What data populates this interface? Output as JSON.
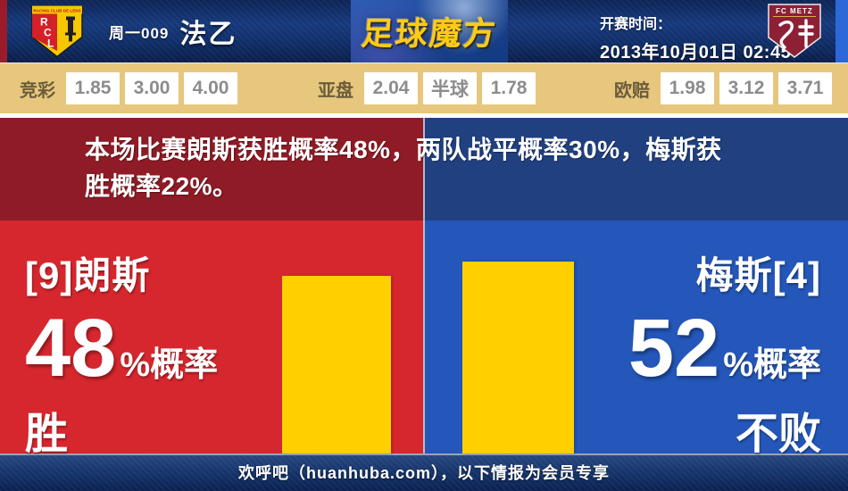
{
  "header": {
    "match_code": "周一009",
    "league": "法乙",
    "brand": "足球魔方",
    "kickoff_label": "开赛时间：",
    "kickoff_time": "2013年10月01日 02:45",
    "home_badge": {
      "banner": "RACING CLUB DE LENS",
      "letters": [
        "R",
        "C",
        "L"
      ]
    },
    "away_badge": {
      "banner": "FC METZ"
    }
  },
  "odds": {
    "sections": [
      {
        "label": "竞彩",
        "values": [
          "1.85",
          "3.00",
          "4.00"
        ]
      },
      {
        "label": "亚盘",
        "values": [
          "2.04",
          "半球",
          "1.78"
        ]
      },
      {
        "label": "欧赔",
        "values": [
          "1.98",
          "3.12",
          "3.71"
        ]
      }
    ]
  },
  "analysis": {
    "summary": "本场比赛朗斯获胜概率48%，两队战平概率30%，梅斯获胜概率22%。"
  },
  "home_panel": {
    "team": "[9]朗斯",
    "value": "48",
    "suffix": "%概率",
    "outcome": "胜"
  },
  "away_panel": {
    "team": "梅斯[4]",
    "value": "52",
    "suffix": "%概率",
    "outcome": "不败"
  },
  "footer": {
    "text": "欢呼吧（huanhuba.com），以下情报为会员专享"
  },
  "colors": {
    "home_bright": "#d7272e",
    "home_dark": "#8e1b26",
    "away_bright": "#2457b9",
    "away_dark": "#20407f",
    "bar_yellow": "#fed000",
    "odds_band": "#e6c77d",
    "footer_navy": "#16356c"
  },
  "chart_data": {
    "type": "bar",
    "categories": [
      "朗斯 胜",
      "梅斯 不败"
    ],
    "values": [
      48,
      52
    ],
    "series": [
      {
        "name": "概率(%)",
        "values": [
          48,
          52
        ]
      }
    ],
    "ylim": [
      0,
      100
    ],
    "bar_color": "#fed000",
    "legend_position": "none",
    "grid": false
  }
}
